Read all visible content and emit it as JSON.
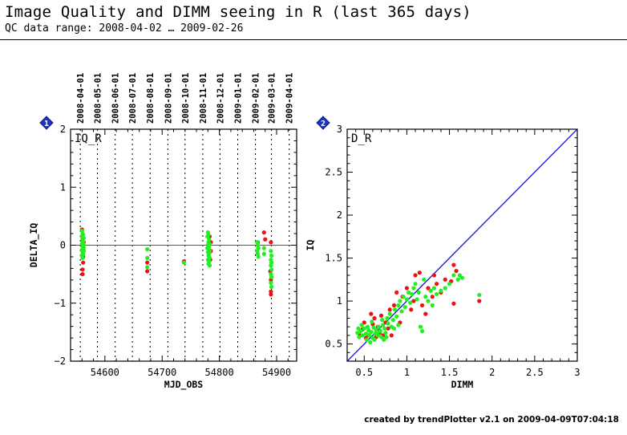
{
  "header": {
    "title": "Image Quality and DIMM seeing in R (last 365 days)",
    "subtitle": "QC data range: 2008-04-02 … 2009-02-26"
  },
  "footer": "created by trendPlotter v2.1 on 2009-04-09T07:04:18",
  "colors": {
    "red": "#ee1111",
    "green": "#22ee22",
    "line": "#1111dd",
    "badge": "#1a33cc"
  },
  "chart_data": [
    {
      "type": "scatter",
      "badge": "1",
      "label": "IQ_R",
      "xlabel": "MJD_OBS",
      "ylabel": "DELTA_IQ",
      "xlim": [
        54540,
        54935
      ],
      "ylim": [
        -2,
        2
      ],
      "xticks": [
        54600,
        54700,
        54800,
        54900
      ],
      "yticks": [
        -2,
        -1,
        0,
        1,
        2
      ],
      "reference_line_y": 0,
      "date_ticks": [
        {
          "label": "2008-04-01",
          "x": 54557
        },
        {
          "label": "2008-05-01",
          "x": 54587
        },
        {
          "label": "2008-06-01",
          "x": 54618
        },
        {
          "label": "2008-07-01",
          "x": 54648
        },
        {
          "label": "2008-08-01",
          "x": 54679
        },
        {
          "label": "2008-09-01",
          "x": 54710
        },
        {
          "label": "2008-10-01",
          "x": 54740
        },
        {
          "label": "2008-11-01",
          "x": 54771
        },
        {
          "label": "2008-12-01",
          "x": 54801
        },
        {
          "label": "2009-01-01",
          "x": 54832
        },
        {
          "label": "2009-02-01",
          "x": 54863
        },
        {
          "label": "2009-03-01",
          "x": 54891
        },
        {
          "label": "2009-04-01",
          "x": 54922
        }
      ],
      "series": [
        {
          "color": "red",
          "points": [
            [
              54560,
              0.27
            ],
            [
              54561,
              0.12
            ],
            [
              54560,
              -0.08
            ],
            [
              54562,
              -0.2
            ],
            [
              54561,
              -0.42
            ],
            [
              54561,
              -0.5
            ],
            [
              54563,
              0.05
            ],
            [
              54562,
              -0.3
            ],
            [
              54674,
              -0.3
            ],
            [
              54674,
              -0.45
            ],
            [
              54738,
              -0.28
            ],
            [
              54783,
              0.15
            ],
            [
              54785,
              0.05
            ],
            [
              54785,
              -0.1
            ],
            [
              54784,
              -0.25
            ],
            [
              54867,
              0.05
            ],
            [
              54868,
              -0.05
            ],
            [
              54878,
              0.22
            ],
            [
              54880,
              0.1
            ],
            [
              54890,
              0.05
            ],
            [
              54889,
              -0.45
            ],
            [
              54890,
              -0.6
            ],
            [
              54890,
              -0.8
            ],
            [
              54890,
              -0.85
            ]
          ]
        },
        {
          "color": "green",
          "points": [
            [
              54560,
              0.25
            ],
            [
              54561,
              0.2
            ],
            [
              54562,
              0.18
            ],
            [
              54560,
              0.15
            ],
            [
              54563,
              0.12
            ],
            [
              54561,
              0.1
            ],
            [
              54562,
              0.05
            ],
            [
              54560,
              0.03
            ],
            [
              54563,
              0.0
            ],
            [
              54561,
              -0.02
            ],
            [
              54562,
              -0.05
            ],
            [
              54560,
              -0.08
            ],
            [
              54563,
              -0.1
            ],
            [
              54561,
              -0.12
            ],
            [
              54562,
              -0.15
            ],
            [
              54560,
              -0.18
            ],
            [
              54561,
              -0.22
            ],
            [
              54563,
              -0.05
            ],
            [
              54674,
              -0.07
            ],
            [
              54674,
              -0.22
            ],
            [
              54674,
              -0.38
            ],
            [
              54738,
              -0.3
            ],
            [
              54780,
              0.22
            ],
            [
              54781,
              0.18
            ],
            [
              54779,
              0.15
            ],
            [
              54782,
              0.1
            ],
            [
              54781,
              0.05
            ],
            [
              54783,
              0.02
            ],
            [
              54780,
              0.0
            ],
            [
              54782,
              -0.03
            ],
            [
              54779,
              -0.05
            ],
            [
              54781,
              -0.08
            ],
            [
              54783,
              -0.1
            ],
            [
              54780,
              -0.12
            ],
            [
              54782,
              -0.15
            ],
            [
              54781,
              -0.18
            ],
            [
              54783,
              -0.22
            ],
            [
              54780,
              -0.25
            ],
            [
              54782,
              -0.28
            ],
            [
              54781,
              -0.32
            ],
            [
              54783,
              -0.35
            ],
            [
              54866,
              0.05
            ],
            [
              54867,
              0.0
            ],
            [
              54868,
              -0.05
            ],
            [
              54866,
              -0.1
            ],
            [
              54867,
              -0.15
            ],
            [
              54868,
              -0.2
            ],
            [
              54878,
              -0.05
            ],
            [
              54878,
              -0.15
            ],
            [
              54890,
              -0.1
            ],
            [
              54891,
              -0.18
            ],
            [
              54890,
              -0.25
            ],
            [
              54891,
              -0.3
            ],
            [
              54890,
              -0.35
            ],
            [
              54891,
              -0.42
            ],
            [
              54890,
              -0.5
            ],
            [
              54891,
              -0.55
            ],
            [
              54890,
              -0.65
            ],
            [
              54891,
              -0.72
            ]
          ]
        }
      ]
    },
    {
      "type": "scatter",
      "badge": "2",
      "label": "D_R",
      "xlabel": "DIMM",
      "ylabel": "IQ",
      "xlim": [
        0.3,
        3
      ],
      "ylim": [
        0.3,
        3
      ],
      "xticks": [
        0.5,
        1,
        1.5,
        2,
        2.5,
        3
      ],
      "yticks": [
        0.5,
        1,
        1.5,
        2,
        2.5,
        3
      ],
      "reference_line": "y=x",
      "series": [
        {
          "color": "red",
          "points": [
            [
              0.48,
              0.67
            ],
            [
              0.52,
              0.57
            ],
            [
              0.55,
              0.6
            ],
            [
              0.6,
              0.73
            ],
            [
              0.62,
              0.8
            ],
            [
              0.58,
              0.85
            ],
            [
              0.66,
              0.7
            ],
            [
              0.7,
              0.83
            ],
            [
              0.72,
              0.6
            ],
            [
              0.68,
              0.63
            ],
            [
              0.75,
              0.75
            ],
            [
              0.8,
              0.9
            ],
            [
              0.85,
              0.95
            ],
            [
              0.88,
              1.1
            ],
            [
              0.92,
              0.75
            ],
            [
              0.95,
              1.05
            ],
            [
              1.0,
              1.15
            ],
            [
              1.05,
              0.9
            ],
            [
              1.08,
              1.0
            ],
            [
              1.1,
              1.3
            ],
            [
              1.15,
              1.33
            ],
            [
              1.18,
              0.95
            ],
            [
              1.22,
              0.85
            ],
            [
              1.25,
              1.15
            ],
            [
              1.3,
              1.05
            ],
            [
              1.32,
              1.3
            ],
            [
              1.35,
              1.2
            ],
            [
              1.4,
              1.1
            ],
            [
              1.45,
              1.25
            ],
            [
              1.52,
              1.23
            ],
            [
              1.55,
              1.42
            ],
            [
              1.58,
              1.35
            ],
            [
              1.55,
              0.97
            ],
            [
              1.85,
              1.0
            ],
            [
              0.82,
              0.6
            ],
            [
              0.5,
              0.75
            ],
            [
              0.64,
              0.58
            ],
            [
              0.78,
              0.68
            ],
            [
              0.45,
              0.6
            ]
          ]
        },
        {
          "color": "green",
          "points": [
            [
              0.42,
              0.63
            ],
            [
              0.44,
              0.58
            ],
            [
              0.46,
              0.65
            ],
            [
              0.48,
              0.6
            ],
            [
              0.5,
              0.68
            ],
            [
              0.52,
              0.62
            ],
            [
              0.53,
              0.55
            ],
            [
              0.55,
              0.66
            ],
            [
              0.56,
              0.6
            ],
            [
              0.58,
              0.64
            ],
            [
              0.6,
              0.57
            ],
            [
              0.61,
              0.69
            ],
            [
              0.63,
              0.62
            ],
            [
              0.64,
              0.66
            ],
            [
              0.66,
              0.6
            ],
            [
              0.67,
              0.7
            ],
            [
              0.69,
              0.65
            ],
            [
              0.7,
              0.58
            ],
            [
              0.72,
              0.72
            ],
            [
              0.74,
              0.68
            ],
            [
              0.75,
              0.63
            ],
            [
              0.77,
              0.8
            ],
            [
              0.78,
              0.74
            ],
            [
              0.8,
              0.85
            ],
            [
              0.82,
              0.7
            ],
            [
              0.84,
              0.78
            ],
            [
              0.86,
              0.9
            ],
            [
              0.88,
              0.82
            ],
            [
              0.9,
              0.95
            ],
            [
              0.92,
              1.0
            ],
            [
              0.94,
              0.88
            ],
            [
              0.96,
              1.05
            ],
            [
              0.98,
              0.93
            ],
            [
              1.0,
              1.02
            ],
            [
              1.02,
              1.1
            ],
            [
              1.04,
              0.98
            ],
            [
              1.06,
              1.08
            ],
            [
              1.08,
              1.15
            ],
            [
              1.1,
              1.2
            ],
            [
              1.12,
              1.02
            ],
            [
              1.14,
              1.1
            ],
            [
              1.16,
              0.7
            ],
            [
              1.18,
              0.65
            ],
            [
              1.2,
              1.25
            ],
            [
              1.22,
              1.05
            ],
            [
              1.25,
              1.0
            ],
            [
              1.28,
              1.12
            ],
            [
              1.3,
              0.95
            ],
            [
              1.32,
              1.15
            ],
            [
              1.35,
              1.08
            ],
            [
              1.4,
              1.12
            ],
            [
              1.45,
              1.15
            ],
            [
              1.5,
              1.2
            ],
            [
              1.55,
              1.3
            ],
            [
              1.6,
              1.25
            ],
            [
              1.62,
              1.3
            ],
            [
              1.65,
              1.27
            ],
            [
              1.85,
              1.07
            ],
            [
              0.47,
              0.72
            ],
            [
              0.54,
              0.7
            ],
            [
              0.59,
              0.76
            ],
            [
              0.57,
              0.52
            ],
            [
              0.62,
              0.55
            ],
            [
              0.43,
              0.68
            ],
            [
              0.65,
              0.63
            ],
            [
              0.71,
              0.78
            ],
            [
              0.73,
              0.55
            ],
            [
              0.76,
              0.58
            ],
            [
              0.85,
              0.68
            ],
            [
              0.9,
              0.72
            ]
          ]
        }
      ]
    }
  ]
}
